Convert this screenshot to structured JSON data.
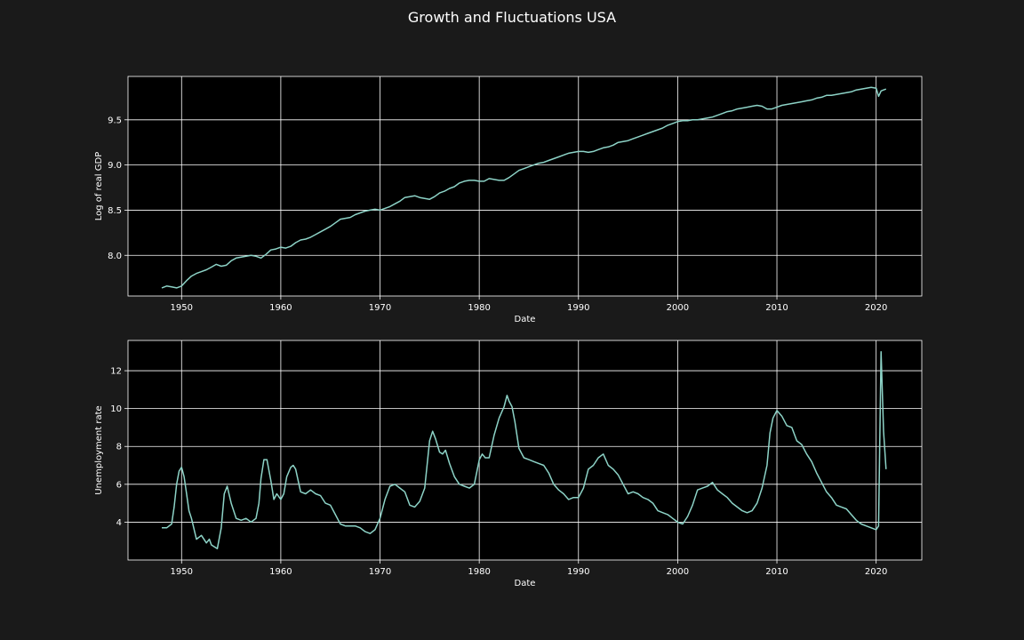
{
  "title": "Growth and Fluctuations USA",
  "colors": {
    "figure_background": "#1a1a1a",
    "axes_background": "#000000",
    "grid": "#ffffff",
    "line": "#8dd3c7",
    "text": "#ffffff"
  },
  "chart_data": [
    {
      "type": "line",
      "xlabel": "Date",
      "ylabel": "Log of real GDP",
      "xlim": [
        1944.6,
        2024.6
      ],
      "ylim": [
        7.55,
        9.98
      ],
      "xticks": [
        1950,
        1960,
        1970,
        1980,
        1990,
        2000,
        2010,
        2020
      ],
      "yticks": [
        8.0,
        8.5,
        9.0,
        9.5
      ],
      "ytick_labels": [
        "8.0",
        "8.5",
        "9.0",
        "9.5"
      ],
      "grid": true,
      "x": [
        1948.0,
        1948.5,
        1949.0,
        1949.5,
        1950.0,
        1950.5,
        1951.0,
        1951.5,
        1952.0,
        1952.5,
        1953.0,
        1953.5,
        1954.0,
        1954.5,
        1955.0,
        1955.5,
        1956.0,
        1956.5,
        1957.0,
        1957.5,
        1958.0,
        1958.5,
        1959.0,
        1959.5,
        1960.0,
        1960.5,
        1961.0,
        1961.5,
        1962.0,
        1962.5,
        1963.0,
        1963.5,
        1964.0,
        1964.5,
        1965.0,
        1965.5,
        1966.0,
        1966.5,
        1967.0,
        1967.5,
        1968.0,
        1968.5,
        1969.0,
        1969.5,
        1970.0,
        1970.5,
        1971.0,
        1971.5,
        1972.0,
        1972.5,
        1973.0,
        1973.5,
        1974.0,
        1974.5,
        1975.0,
        1975.5,
        1976.0,
        1976.5,
        1977.0,
        1977.5,
        1978.0,
        1978.5,
        1979.0,
        1979.5,
        1980.0,
        1980.5,
        1981.0,
        1981.5,
        1982.0,
        1982.5,
        1983.0,
        1983.5,
        1984.0,
        1984.5,
        1985.0,
        1985.5,
        1986.0,
        1986.5,
        1987.0,
        1987.5,
        1988.0,
        1988.5,
        1989.0,
        1989.5,
        1990.0,
        1990.5,
        1991.0,
        1991.5,
        1992.0,
        1992.5,
        1993.0,
        1993.5,
        1994.0,
        1994.5,
        1995.0,
        1995.5,
        1996.0,
        1996.5,
        1997.0,
        1997.5,
        1998.0,
        1998.5,
        1999.0,
        1999.5,
        2000.0,
        2000.5,
        2001.0,
        2001.5,
        2002.0,
        2002.5,
        2003.0,
        2003.5,
        2004.0,
        2004.5,
        2005.0,
        2005.5,
        2006.0,
        2006.5,
        2007.0,
        2007.5,
        2008.0,
        2008.5,
        2009.0,
        2009.5,
        2010.0,
        2010.5,
        2011.0,
        2011.5,
        2012.0,
        2012.5,
        2013.0,
        2013.5,
        2014.0,
        2014.5,
        2015.0,
        2015.5,
        2016.0,
        2016.5,
        2017.0,
        2017.5,
        2018.0,
        2018.5,
        2019.0,
        2019.5,
        2020.0,
        2020.25,
        2020.5,
        2020.75,
        2021.0
      ],
      "y": [
        7.64,
        7.66,
        7.65,
        7.64,
        7.66,
        7.72,
        7.77,
        7.8,
        7.82,
        7.84,
        7.87,
        7.9,
        7.88,
        7.89,
        7.94,
        7.97,
        7.98,
        7.99,
        8.0,
        7.99,
        7.97,
        8.01,
        8.06,
        8.07,
        8.09,
        8.08,
        8.1,
        8.14,
        8.17,
        8.18,
        8.2,
        8.23,
        8.26,
        8.29,
        8.32,
        8.36,
        8.4,
        8.41,
        8.42,
        8.45,
        8.47,
        8.49,
        8.5,
        8.51,
        8.5,
        8.52,
        8.54,
        8.57,
        8.6,
        8.64,
        8.65,
        8.66,
        8.64,
        8.63,
        8.62,
        8.65,
        8.69,
        8.71,
        8.74,
        8.76,
        8.8,
        8.82,
        8.83,
        8.83,
        8.82,
        8.82,
        8.85,
        8.84,
        8.83,
        8.83,
        8.86,
        8.9,
        8.94,
        8.96,
        8.98,
        9.0,
        9.02,
        9.03,
        9.05,
        9.07,
        9.09,
        9.11,
        9.13,
        9.14,
        9.15,
        9.15,
        9.14,
        9.15,
        9.17,
        9.19,
        9.2,
        9.22,
        9.25,
        9.26,
        9.27,
        9.29,
        9.31,
        9.33,
        9.35,
        9.37,
        9.39,
        9.41,
        9.44,
        9.46,
        9.48,
        9.49,
        9.49,
        9.5,
        9.5,
        9.51,
        9.52,
        9.53,
        9.55,
        9.57,
        9.59,
        9.6,
        9.62,
        9.63,
        9.64,
        9.65,
        9.66,
        9.65,
        9.62,
        9.62,
        9.64,
        9.66,
        9.67,
        9.68,
        9.69,
        9.7,
        9.71,
        9.72,
        9.74,
        9.75,
        9.77,
        9.77,
        9.78,
        9.79,
        9.8,
        9.81,
        9.83,
        9.84,
        9.85,
        9.86,
        9.85,
        9.76,
        9.82,
        9.83,
        9.84
      ]
    },
    {
      "type": "line",
      "xlabel": "Date",
      "ylabel": "Unemployment rate",
      "xlim": [
        1944.6,
        2024.6
      ],
      "ylim": [
        2.0,
        13.6
      ],
      "xticks": [
        1950,
        1960,
        1970,
        1980,
        1990,
        2000,
        2010,
        2020
      ],
      "yticks": [
        4,
        6,
        8,
        10,
        12
      ],
      "ytick_labels": [
        "4",
        "6",
        "8",
        "10",
        "12"
      ],
      "grid": true,
      "x": [
        1948.0,
        1948.5,
        1949.0,
        1949.25,
        1949.5,
        1949.75,
        1950.0,
        1950.25,
        1950.5,
        1950.75,
        1951.0,
        1951.5,
        1952.0,
        1952.5,
        1952.8,
        1953.0,
        1953.3,
        1953.6,
        1954.0,
        1954.3,
        1954.6,
        1955.0,
        1955.5,
        1956.0,
        1956.5,
        1957.0,
        1957.5,
        1957.8,
        1958.0,
        1958.3,
        1958.6,
        1959.0,
        1959.3,
        1959.6,
        1960.0,
        1960.3,
        1960.6,
        1961.0,
        1961.25,
        1961.5,
        1962.0,
        1962.5,
        1963.0,
        1963.5,
        1964.0,
        1964.5,
        1965.0,
        1965.5,
        1966.0,
        1966.5,
        1967.0,
        1967.5,
        1968.0,
        1968.5,
        1969.0,
        1969.5,
        1970.0,
        1970.5,
        1971.0,
        1971.5,
        1972.0,
        1972.5,
        1973.0,
        1973.5,
        1974.0,
        1974.5,
        1975.0,
        1975.3,
        1975.6,
        1976.0,
        1976.3,
        1976.6,
        1977.0,
        1977.5,
        1978.0,
        1978.5,
        1979.0,
        1979.5,
        1980.0,
        1980.3,
        1980.6,
        1981.0,
        1981.5,
        1982.0,
        1982.5,
        1982.8,
        1983.0,
        1983.3,
        1983.6,
        1984.0,
        1984.5,
        1985.0,
        1985.5,
        1986.0,
        1986.5,
        1987.0,
        1987.5,
        1988.0,
        1988.5,
        1989.0,
        1989.5,
        1990.0,
        1990.5,
        1991.0,
        1991.5,
        1992.0,
        1992.5,
        1993.0,
        1993.5,
        1994.0,
        1994.5,
        1995.0,
        1995.5,
        1996.0,
        1996.5,
        1997.0,
        1997.5,
        1998.0,
        1998.5,
        1999.0,
        1999.5,
        2000.0,
        2000.5,
        2001.0,
        2001.5,
        2002.0,
        2002.5,
        2003.0,
        2003.5,
        2004.0,
        2004.5,
        2005.0,
        2005.5,
        2006.0,
        2006.5,
        2007.0,
        2007.5,
        2008.0,
        2008.5,
        2009.0,
        2009.3,
        2009.6,
        2010.0,
        2010.5,
        2011.0,
        2011.5,
        2012.0,
        2012.5,
        2013.0,
        2013.5,
        2014.0,
        2014.5,
        2015.0,
        2015.5,
        2016.0,
        2016.5,
        2017.0,
        2017.5,
        2018.0,
        2018.5,
        2019.0,
        2019.5,
        2020.0,
        2020.25,
        2020.5,
        2020.75,
        2021.0
      ],
      "y": [
        3.7,
        3.7,
        3.9,
        4.8,
        6.0,
        6.7,
        6.9,
        6.4,
        5.5,
        4.6,
        4.2,
        3.1,
        3.3,
        2.9,
        3.1,
        2.8,
        2.7,
        2.6,
        3.7,
        5.5,
        5.9,
        5.0,
        4.2,
        4.1,
        4.2,
        4.0,
        4.2,
        5.0,
        6.3,
        7.3,
        7.3,
        6.2,
        5.2,
        5.5,
        5.2,
        5.5,
        6.4,
        6.9,
        7.0,
        6.8,
        5.6,
        5.5,
        5.7,
        5.5,
        5.4,
        5.0,
        4.9,
        4.4,
        3.9,
        3.8,
        3.8,
        3.8,
        3.7,
        3.5,
        3.4,
        3.6,
        4.2,
        5.2,
        5.9,
        6.0,
        5.8,
        5.6,
        4.9,
        4.8,
        5.1,
        5.8,
        8.3,
        8.8,
        8.4,
        7.7,
        7.6,
        7.8,
        7.1,
        6.4,
        6.0,
        5.9,
        5.8,
        6.0,
        7.3,
        7.6,
        7.4,
        7.4,
        8.6,
        9.5,
        10.1,
        10.7,
        10.4,
        10.1,
        9.3,
        7.9,
        7.4,
        7.3,
        7.2,
        7.1,
        7.0,
        6.6,
        6.0,
        5.7,
        5.5,
        5.2,
        5.3,
        5.3,
        5.8,
        6.8,
        7.0,
        7.4,
        7.6,
        7.0,
        6.8,
        6.5,
        6.0,
        5.5,
        5.6,
        5.5,
        5.3,
        5.2,
        5.0,
        4.6,
        4.5,
        4.4,
        4.2,
        4.0,
        3.9,
        4.3,
        4.9,
        5.7,
        5.8,
        5.9,
        6.1,
        5.7,
        5.5,
        5.3,
        5.0,
        4.8,
        4.6,
        4.5,
        4.6,
        5.0,
        5.8,
        7.0,
        8.7,
        9.5,
        9.9,
        9.6,
        9.1,
        9.0,
        8.3,
        8.1,
        7.6,
        7.2,
        6.6,
        6.1,
        5.6,
        5.3,
        4.9,
        4.8,
        4.7,
        4.4,
        4.1,
        3.9,
        3.8,
        3.7,
        3.6,
        3.8,
        13.0,
        8.8,
        6.8
      ]
    }
  ]
}
